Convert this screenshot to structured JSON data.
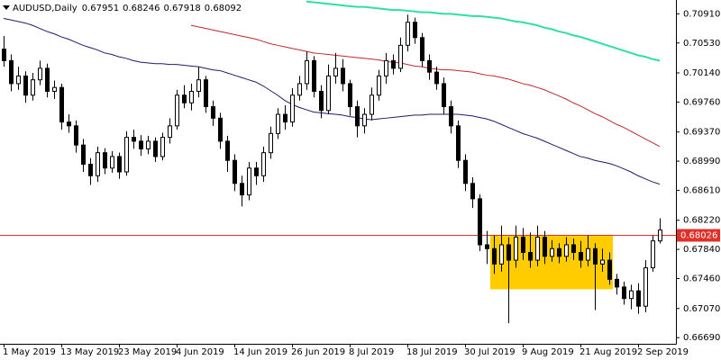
{
  "chart_data": {
    "type": "candlestick",
    "symbol": "AUDUSD,Daily",
    "categories": [
      "1 May 2019",
      null,
      null,
      null,
      null,
      null,
      null,
      null,
      "13 May 2019",
      null,
      null,
      null,
      null,
      null,
      null,
      null,
      "23 May 2019",
      null,
      null,
      null,
      null,
      null,
      null,
      null,
      "4 Jun 2019",
      null,
      null,
      null,
      null,
      null,
      null,
      null,
      "14 Jun 2019",
      null,
      null,
      null,
      null,
      null,
      null,
      null,
      "26 Jun 2019",
      null,
      null,
      null,
      null,
      null,
      null,
      null,
      "8 Jul 2019",
      null,
      null,
      null,
      null,
      null,
      null,
      null,
      "18 Jul 2019",
      null,
      null,
      null,
      null,
      null,
      null,
      null,
      "30 Jul 2019",
      null,
      null,
      null,
      null,
      null,
      null,
      null,
      "9 Aug 2019",
      null,
      null,
      null,
      null,
      null,
      null,
      null,
      "21 Aug 2019",
      null,
      null,
      null,
      null,
      null,
      null,
      null,
      "2 Sep 2019",
      null,
      null,
      null
    ],
    "open": [
      0.7045,
      0.703,
      0.7,
      0.701,
      0.6985,
      0.7005,
      0.702,
      0.699,
      0.6995,
      0.695,
      0.6945,
      0.692,
      0.6895,
      0.688,
      0.691,
      0.689,
      0.6905,
      0.6885,
      0.693,
      0.6925,
      0.6915,
      0.6925,
      0.6905,
      0.693,
      0.6945,
      0.6985,
      0.6975,
      0.699,
      0.7005,
      0.697,
      0.6955,
      0.6925,
      0.69,
      0.687,
      0.6855,
      0.689,
      0.688,
      0.691,
      0.6935,
      0.696,
      0.695,
      0.6985,
      0.7,
      0.703,
      0.699,
      0.6965,
      0.701,
      0.702,
      0.7,
      0.697,
      0.6945,
      0.696,
      0.6985,
      0.701,
      0.703,
      0.702,
      0.705,
      0.708,
      0.706,
      0.703,
      0.7015,
      0.7,
      0.697,
      0.6945,
      0.69,
      0.687,
      0.685,
      0.679,
      0.6785,
      0.6765,
      0.679,
      0.677,
      0.68,
      0.678,
      0.677,
      0.68,
      0.6775,
      0.6785,
      0.6775,
      0.679,
      0.678,
      0.677,
      0.6785,
      0.6765,
      0.677,
      0.6745,
      0.6735,
      0.672,
      0.673,
      0.671,
      0.676,
      0.67951
    ],
    "high": [
      0.7062,
      0.7038,
      0.7022,
      0.7016,
      0.7014,
      0.703,
      0.7026,
      0.7004,
      0.7,
      0.696,
      0.6952,
      0.6928,
      0.6903,
      0.6918,
      0.6916,
      0.6912,
      0.691,
      0.6938,
      0.694,
      0.6933,
      0.6932,
      0.693,
      0.6936,
      0.6955,
      0.6992,
      0.6998,
      0.7,
      0.7022,
      0.701,
      0.6978,
      0.6962,
      0.6932,
      0.6908,
      0.688,
      0.6898,
      0.6898,
      0.6918,
      0.6944,
      0.6968,
      0.6972,
      0.6994,
      0.701,
      0.7042,
      0.7036,
      0.6998,
      0.7025,
      0.704,
      0.7032,
      0.7005,
      0.6978,
      0.6968,
      0.6995,
      0.7018,
      0.704,
      0.7038,
      0.706,
      0.709,
      0.7086,
      0.7066,
      0.7038,
      0.7022,
      0.7008,
      0.6978,
      0.6952,
      0.6908,
      0.6878,
      0.6856,
      0.6808,
      0.6802,
      0.6815,
      0.68,
      0.6815,
      0.6812,
      0.6806,
      0.6815,
      0.6808,
      0.6796,
      0.6792,
      0.68,
      0.6798,
      0.6795,
      0.6802,
      0.6792,
      0.6785,
      0.678,
      0.6752,
      0.6742,
      0.6738,
      0.674,
      0.677,
      0.6802,
      0.68246
    ],
    "low": [
      0.7022,
      0.699,
      0.6992,
      0.6975,
      0.6978,
      0.6998,
      0.6982,
      0.698,
      0.694,
      0.6936,
      0.691,
      0.6885,
      0.6868,
      0.6872,
      0.6882,
      0.6884,
      0.6876,
      0.688,
      0.6915,
      0.6906,
      0.6908,
      0.6898,
      0.69,
      0.6922,
      0.694,
      0.6968,
      0.6965,
      0.6982,
      0.6962,
      0.6945,
      0.6915,
      0.6885,
      0.686,
      0.684,
      0.6848,
      0.6868,
      0.6872,
      0.6902,
      0.6928,
      0.694,
      0.6944,
      0.6978,
      0.6992,
      0.6982,
      0.6955,
      0.696,
      0.7,
      0.699,
      0.6958,
      0.693,
      0.6935,
      0.6952,
      0.6978,
      0.7,
      0.7012,
      0.7015,
      0.7042,
      0.7052,
      0.7022,
      0.7005,
      0.6992,
      0.696,
      0.6935,
      0.689,
      0.686,
      0.6838,
      0.6782,
      0.6765,
      0.6752,
      0.6755,
      0.6688,
      0.676,
      0.677,
      0.676,
      0.6762,
      0.6765,
      0.6768,
      0.6766,
      0.6768,
      0.677,
      0.676,
      0.6762,
      0.6705,
      0.6755,
      0.6738,
      0.6725,
      0.6712,
      0.6706,
      0.67,
      0.6702,
      0.6755,
      0.67918
    ],
    "close": [
      0.703,
      0.7,
      0.701,
      0.6985,
      0.7005,
      0.702,
      0.699,
      0.6995,
      0.695,
      0.6945,
      0.692,
      0.6895,
      0.688,
      0.691,
      0.689,
      0.6905,
      0.6885,
      0.693,
      0.6925,
      0.6915,
      0.6925,
      0.6905,
      0.693,
      0.6945,
      0.6985,
      0.6975,
      0.699,
      0.7005,
      0.697,
      0.6955,
      0.6925,
      0.69,
      0.687,
      0.6855,
      0.689,
      0.688,
      0.691,
      0.6935,
      0.696,
      0.695,
      0.6985,
      0.7,
      0.703,
      0.699,
      0.6965,
      0.701,
      0.702,
      0.7,
      0.697,
      0.6945,
      0.696,
      0.6985,
      0.701,
      0.703,
      0.702,
      0.705,
      0.708,
      0.706,
      0.703,
      0.7015,
      0.7,
      0.697,
      0.6945,
      0.69,
      0.687,
      0.685,
      0.679,
      0.6785,
      0.6765,
      0.679,
      0.677,
      0.68,
      0.678,
      0.677,
      0.68,
      0.6775,
      0.6785,
      0.6775,
      0.679,
      0.678,
      0.677,
      0.6785,
      0.6765,
      0.677,
      0.6745,
      0.6735,
      0.672,
      0.673,
      0.671,
      0.676,
      0.67951,
      0.68092
    ],
    "up_color": "#ffffff",
    "down_color": "#000000",
    "series": [
      {
        "color": "#1c1c6b",
        "values": [
          0.7085,
          0.7083,
          0.7081,
          0.7079,
          0.7076,
          0.7072,
          0.7068,
          0.7065,
          0.7061,
          0.7058,
          0.7054,
          0.705,
          0.7047,
          0.7044,
          0.704,
          0.7038,
          0.7035,
          0.7033,
          0.703,
          0.7028,
          0.7027,
          0.7026,
          0.7026,
          0.7025,
          0.7025,
          0.7024,
          0.7023,
          0.7022,
          0.702,
          0.7018,
          0.7017,
          0.7014,
          0.7011,
          0.7008,
          0.7005,
          0.7002,
          0.6997,
          0.6991,
          0.6985,
          0.6978,
          0.6973,
          0.6969,
          0.6966,
          0.6963,
          0.6962,
          0.6961,
          0.696,
          0.6959,
          0.6957,
          0.6956,
          0.6954,
          0.6953,
          0.6954,
          0.6955,
          0.6956,
          0.6957,
          0.6958,
          0.6959,
          0.6959,
          0.696,
          0.696,
          0.696,
          0.696,
          0.696,
          0.6959,
          0.6958,
          0.6956,
          0.6954,
          0.6951,
          0.6947,
          0.6943,
          0.6939,
          0.6935,
          0.6932,
          0.6929,
          0.6925,
          0.6921,
          0.6917,
          0.6913,
          0.6909,
          0.6905,
          0.6903,
          0.69,
          0.6898,
          0.6896,
          0.6893,
          0.6889,
          0.6885,
          0.688,
          0.6876,
          0.6872,
          0.6869
        ]
      },
      {
        "color": "#c0282d",
        "values": [
          null,
          null,
          null,
          null,
          null,
          null,
          null,
          null,
          null,
          null,
          null,
          null,
          null,
          null,
          null,
          null,
          null,
          null,
          null,
          null,
          null,
          null,
          null,
          null,
          null,
          null,
          0.7076,
          0.7074,
          0.7072,
          0.707,
          0.7068,
          0.7066,
          0.7064,
          0.7062,
          0.706,
          0.7058,
          0.7055,
          0.7052,
          0.705,
          0.7048,
          0.7046,
          0.7044,
          0.7042,
          0.704,
          0.7039,
          0.7038,
          0.7037,
          0.7036,
          0.7035,
          0.7034,
          0.7033,
          0.7032,
          0.7031,
          0.7029,
          0.7028,
          0.7027,
          0.7025,
          0.7023,
          0.7022,
          0.702,
          0.7019,
          0.7018,
          0.7018,
          0.7017,
          0.7016,
          0.7015,
          0.7013,
          0.7011,
          0.701,
          0.7008,
          0.7006,
          0.7003,
          0.7,
          0.6998,
          0.6995,
          0.6992,
          0.6988,
          0.6984,
          0.698,
          0.6975,
          0.6971,
          0.6966,
          0.6961,
          0.6957,
          0.6952,
          0.6947,
          0.6943,
          0.6938,
          0.6933,
          0.6928,
          0.6923,
          0.6918
        ]
      },
      {
        "color": "#2ee0a0",
        "values": [
          null,
          null,
          null,
          null,
          null,
          null,
          null,
          null,
          null,
          null,
          null,
          null,
          null,
          null,
          null,
          null,
          null,
          null,
          null,
          null,
          null,
          null,
          null,
          null,
          null,
          null,
          null,
          null,
          null,
          null,
          null,
          null,
          null,
          null,
          null,
          null,
          null,
          null,
          null,
          null,
          null,
          null,
          0.7107,
          0.7106,
          0.7105,
          0.7104,
          0.7103,
          0.7102,
          0.7101,
          0.71,
          0.71,
          0.7099,
          0.7098,
          0.7097,
          0.7096,
          0.7096,
          0.7095,
          0.7094,
          0.7093,
          0.7093,
          0.7092,
          0.7091,
          0.7091,
          0.709,
          0.7089,
          0.7088,
          0.7088,
          0.7087,
          0.7086,
          0.7085,
          0.7083,
          0.7081,
          0.708,
          0.7078,
          0.7076,
          0.7073,
          0.7071,
          0.7068,
          0.7066,
          0.7063,
          0.7061,
          0.7058,
          0.7055,
          0.7052,
          0.7049,
          0.7046,
          0.7043,
          0.704,
          0.7037,
          0.7035,
          0.7032,
          0.703
        ]
      }
    ],
    "highlight": {
      "x": [
        68,
        84
      ],
      "y": [
        0.6802,
        0.6732
      ],
      "color": "#ffcc00"
    },
    "price_line": {
      "value": 0.68026,
      "color": "#e0302a"
    },
    "ylim": [
      0.6661,
      0.7109
    ],
    "yticks": [
      {
        "value": 0.7091,
        "label": "0.70910"
      },
      {
        "value": 0.7053,
        "label": "0.70530"
      },
      {
        "value": 0.7014,
        "label": "0.70140"
      },
      {
        "value": 0.6976,
        "label": "0.69760"
      },
      {
        "value": 0.6937,
        "label": "0.69370"
      },
      {
        "value": 0.6899,
        "label": "0.68990"
      },
      {
        "value": 0.6861,
        "label": "0.68610"
      },
      {
        "value": 0.6822,
        "label": "0.68220"
      },
      {
        "value": 0.6784,
        "label": "0.67840"
      },
      {
        "value": 0.6746,
        "label": "0.67460"
      },
      {
        "value": 0.6707,
        "label": "0.67070"
      },
      {
        "value": 0.6669,
        "label": "0.66690"
      }
    ],
    "grid": false
  }
}
